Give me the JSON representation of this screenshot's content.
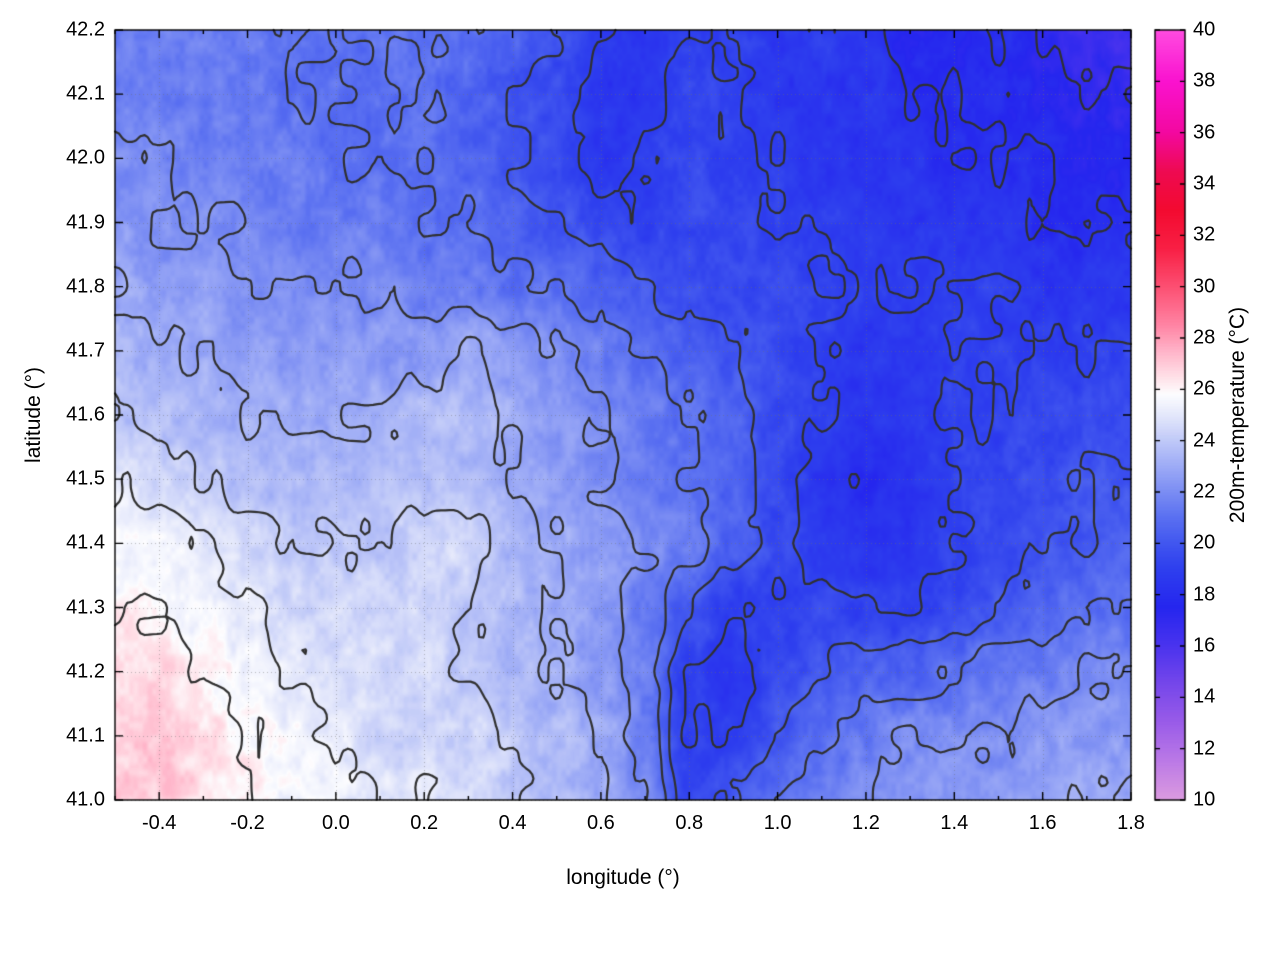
{
  "figure": {
    "background": "#ffffff"
  },
  "chart_data": {
    "type": "heatmap",
    "xlabel": "longitude (°)",
    "ylabel": "latitude (°)",
    "xlim": [
      -0.5,
      1.8
    ],
    "ylim": [
      41.0,
      42.2
    ],
    "grid_on": true,
    "contour_color": "#303030",
    "contour_levels": [
      17,
      18,
      19,
      20,
      21,
      22,
      23,
      24,
      25,
      26
    ],
    "x_ticks": {
      "minor_step": 0.1,
      "values": [
        -0.4,
        -0.2,
        0.0,
        0.2,
        0.4,
        0.6,
        0.8,
        1.0,
        1.2,
        1.4,
        1.6,
        1.8
      ],
      "labels": [
        "-0.4",
        "-0.2",
        "0.0",
        "0.2",
        "0.4",
        "0.6",
        "0.8",
        "1.0",
        "1.2",
        "1.4",
        "1.6",
        "1.8"
      ]
    },
    "y_ticks": {
      "values": [
        41.0,
        41.1,
        41.2,
        41.3,
        41.4,
        41.5,
        41.6,
        41.7,
        41.8,
        41.9,
        42.0,
        42.1,
        42.2
      ],
      "labels": [
        "41.0",
        "41.1",
        "41.2",
        "41.3",
        "41.4",
        "41.5",
        "41.6",
        "41.7",
        "41.8",
        "41.9",
        "42.0",
        "42.1",
        "42.2"
      ]
    },
    "colorbar": {
      "label": "200m-temperature (°C)",
      "min": 10,
      "max": 40,
      "tick_values": [
        10,
        12,
        14,
        16,
        18,
        20,
        22,
        24,
        26,
        28,
        30,
        32,
        34,
        36,
        38,
        40
      ],
      "tick_labels": [
        "10",
        "12",
        "14",
        "16",
        "18",
        "20",
        "22",
        "24",
        "26",
        "28",
        "30",
        "32",
        "34",
        "36",
        "38",
        "40"
      ]
    },
    "palette_stops": [
      [
        10,
        "#dc9bdf"
      ],
      [
        11.5,
        "#bc7ae6"
      ],
      [
        13,
        "#9a5ce8"
      ],
      [
        14.5,
        "#7647ea"
      ],
      [
        16,
        "#4a33ee"
      ],
      [
        17.5,
        "#2526ee"
      ],
      [
        19,
        "#2e3fee"
      ],
      [
        20,
        "#4156ef"
      ],
      [
        21,
        "#5a70f1"
      ],
      [
        22,
        "#7b8df3"
      ],
      [
        23,
        "#9dabf6"
      ],
      [
        24,
        "#c0c9f8"
      ],
      [
        25,
        "#e4e8fb"
      ],
      [
        25.8,
        "#fdfdff"
      ],
      [
        26.6,
        "#ffdbe4"
      ],
      [
        27.5,
        "#ffb3c8"
      ],
      [
        28.5,
        "#ff84a4"
      ],
      [
        30,
        "#fc4f72"
      ],
      [
        31.5,
        "#f81f44"
      ],
      [
        33,
        "#f30a30"
      ],
      [
        34.5,
        "#ee0a52"
      ],
      [
        36,
        "#f308a0"
      ],
      [
        38,
        "#fa12cf"
      ],
      [
        40,
        "#ff4ce0"
      ]
    ],
    "field": {
      "lon_start": -0.5,
      "lon_step": 0.1,
      "lat_start": 42.2,
      "lat_step": 0.1,
      "ncols": 24,
      "nrows": 13,
      "temps_c": [
        [
          21.5,
          21.5,
          21.5,
          21.5,
          21,
          21,
          21,
          21,
          21,
          20.5,
          20,
          19,
          18.5,
          19,
          19,
          18.5,
          19,
          18.5,
          17.5,
          17.5,
          18,
          17,
          16.5,
          16.5
        ],
        [
          21.5,
          21.5,
          21.5,
          21.5,
          21,
          21,
          21,
          21,
          20.5,
          20,
          19.5,
          18.5,
          18.5,
          19.5,
          19,
          18.5,
          18.5,
          18.5,
          18,
          18,
          18,
          17.5,
          17,
          17
        ],
        [
          22,
          22,
          21.5,
          21.5,
          21.5,
          21,
          21,
          21,
          20.5,
          20,
          19.5,
          18.5,
          19,
          19.5,
          19,
          19,
          18.5,
          18.5,
          18.5,
          18,
          18,
          18,
          17.5,
          17.5
        ],
        [
          22.5,
          22,
          22,
          22,
          21.5,
          21.5,
          21.5,
          21,
          21,
          20.5,
          20,
          19.5,
          19,
          19.5,
          19.5,
          19,
          19,
          18.5,
          18.5,
          18.5,
          18.5,
          18,
          18,
          18
        ],
        [
          23,
          22.5,
          22.5,
          22,
          22,
          22,
          22,
          21.5,
          21.5,
          21,
          21,
          20.5,
          20,
          19.5,
          19.5,
          19.5,
          19,
          19,
          19,
          19,
          19,
          18.5,
          18.5,
          18.5
        ],
        [
          23.5,
          23,
          23,
          22.5,
          22.5,
          22.5,
          22.5,
          22.5,
          23,
          22.5,
          22,
          21.5,
          21,
          20.5,
          20,
          19.5,
          19,
          18.5,
          18.5,
          19,
          19,
          19,
          19,
          19
        ],
        [
          24,
          23.5,
          23.5,
          23,
          23,
          23,
          23,
          23.5,
          23.5,
          23,
          22.5,
          22,
          21.5,
          21,
          20.5,
          19.5,
          19,
          18.5,
          18.5,
          19,
          19,
          19.5,
          19.5,
          19.5
        ],
        [
          25,
          24.5,
          24,
          23.5,
          23.5,
          23.5,
          23.5,
          23.5,
          23.5,
          23,
          22.5,
          22,
          21.5,
          21,
          20.5,
          19.5,
          18.5,
          18,
          18.5,
          19,
          19.5,
          19.5,
          20,
          20
        ],
        [
          25.5,
          25.5,
          25,
          24.5,
          24,
          24,
          24,
          24.5,
          24.5,
          23.5,
          23,
          22.5,
          22,
          21.5,
          20.5,
          19.5,
          18.5,
          18.5,
          18.5,
          19,
          19.5,
          20,
          20,
          20.5
        ],
        [
          26,
          26,
          25.5,
          25,
          24.5,
          24.5,
          24.5,
          24.5,
          24,
          23.5,
          23,
          22.5,
          21.5,
          20,
          19,
          19,
          19.5,
          19,
          19,
          19.5,
          20,
          20.5,
          21,
          21
        ],
        [
          26.5,
          26.5,
          26,
          25.5,
          25,
          24.5,
          24.5,
          24.5,
          24,
          23.5,
          23,
          22.5,
          21.5,
          19,
          18.5,
          19.5,
          20,
          20.5,
          20.5,
          21,
          21.5,
          21.5,
          22,
          22
        ],
        [
          27,
          27,
          26.5,
          26,
          25.5,
          25,
          24.5,
          24.5,
          24.5,
          24,
          23.5,
          23,
          21.5,
          19,
          19,
          20,
          21,
          21.5,
          22,
          22,
          22,
          22.5,
          22.5,
          22.5
        ],
        [
          27,
          27,
          26.5,
          26,
          25.5,
          25.5,
          25,
          25,
          24.5,
          24,
          23.5,
          23,
          22,
          19.5,
          20,
          21,
          21.5,
          22,
          22.5,
          22.5,
          22.5,
          22.5,
          23,
          23
        ]
      ]
    }
  }
}
